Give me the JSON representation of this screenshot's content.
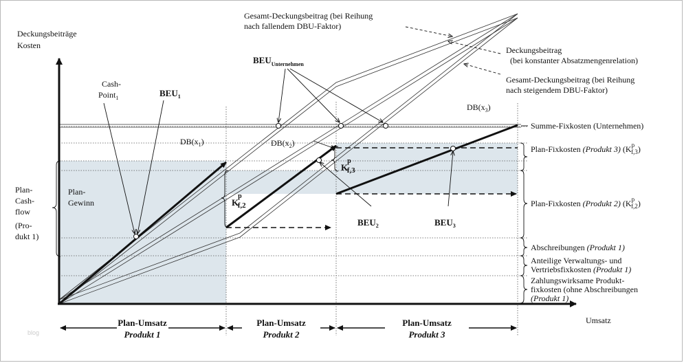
{
  "axes": {
    "y_label_line1": "Deckungsbeiträge",
    "y_label_line2": "Kosten",
    "x_label": "Umsatz"
  },
  "top_annotations": {
    "gesamt_fallend_1": "Gesamt-Deckungsbeitrag (bei Reihung",
    "gesamt_fallend_2": "nach fallendem DBU-Faktor)",
    "deckungsbeitrag_1": "Deckungsbeitrag",
    "deckungsbeitrag_2": "(bei konstanter Absatzmengenrelation)",
    "gesamt_steigend_1": "Gesamt-Deckungsbeitrag (bei Reihung",
    "gesamt_steigend_2": "nach steigendem DBU-Faktor)"
  },
  "labels": {
    "beu_unternehmen": "BEU",
    "beu_unternehmen_sub": "Unternehmen",
    "cash_point_1": "Cash-",
    "cash_point_2": "Point",
    "cash_point_sub": "1",
    "beu1": "BEU",
    "beu1_sub": "1",
    "beu2": "BEU",
    "beu2_sub": "2",
    "beu3": "BEU",
    "beu3_sub": "3",
    "db_x1": "DB(x",
    "db_x1_sub": "1",
    "db_x2": "DB(x",
    "db_x2_sub": "2",
    "db_x3": "DB(x",
    "db_x3_sub": "3",
    "close_paren": ")",
    "kf": "K",
    "kf_sup": "p",
    "kf2_sub": "f,2",
    "kf3_sub": "f,3",
    "plan_gewinn_1": "Plan-",
    "plan_gewinn_2": "Gewinn",
    "plan_cashflow": [
      "Plan-",
      "Cash-",
      "flow",
      "(Pro-",
      "dukt 1)"
    ]
  },
  "right_labels": {
    "summe_fixkosten": "Summe-Fixkosten (Unternehmen)",
    "plan_fix_p3": "Plan-Fixkosten",
    "plan_fix_p3_italic": "(Produkt 3)",
    "plan_fix_p3_k": "(K",
    "plan_fix_p3_sub": "f,3",
    "plan_fix_p2": "Plan-Fixkosten",
    "plan_fix_p2_italic": "(Produkt 2)",
    "plan_fix_p2_k": "(K",
    "plan_fix_p2_sub": "f,2",
    "abschreibungen": "Abschreibungen",
    "abschreibungen_italic": "(Produkt 1)",
    "anteilige_1": "Anteilige Verwaltungs- und",
    "anteilige_2": "Vertriebsfixkosten",
    "anteilige_italic": "(Produkt 1)",
    "zahlungs_1": "Zahlungswirksame Produkt-",
    "zahlungs_2": "fixkosten (ohne Abschreibungen",
    "zahlungs_italic": "(Produkt 1)",
    "sup_p": "p"
  },
  "bottom_ranges": [
    {
      "line1": "Plan-Umsatz",
      "line2": "Produkt 1"
    },
    {
      "line1": "Plan-Umsatz",
      "line2": "Produkt 2"
    },
    {
      "line1": "Plan-Umsatz",
      "line2": "Produkt 3"
    }
  ],
  "watermark": "blog",
  "colors": {
    "shade": "#dde6ec",
    "ink": "#111111",
    "axis": "#111111"
  }
}
